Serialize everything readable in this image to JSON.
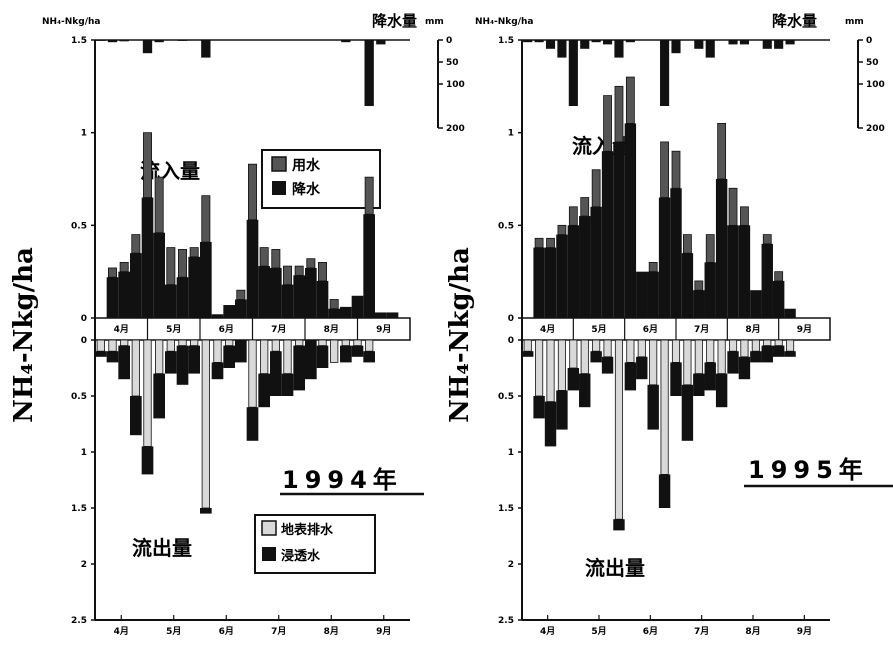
{
  "figure": {
    "y_axis_label": "NH₄-Nkg/ha",
    "rain_unit_left": "NH₄-Nkg/ha",
    "rain_label": "降水量",
    "rain_unit_right": "mm"
  },
  "colors": {
    "rain_fill": "#111111",
    "inflow_irrigation": "#555555",
    "inflow_rain": "#111111",
    "outflow_surface": "#d9d9d9",
    "outflow_subsurface": "#111111",
    "axis": "#111111"
  },
  "chart_data": [
    {
      "type": "bar",
      "year_label": "1994年",
      "inflow_label": "流入量",
      "outflow_label": "流出量",
      "legend_inflow": [
        "用水",
        "降水"
      ],
      "legend_outflow": [
        "地表排水",
        "浸透水"
      ],
      "months_top": [
        "4月",
        "5月",
        "6月",
        "7月",
        "8月",
        "9月"
      ],
      "months_bottom": [
        "4月",
        "5月",
        "6月",
        "7月",
        "8月",
        "9月"
      ],
      "inflow_yticks": [
        "1.5",
        "1",
        "0.5",
        "0"
      ],
      "outflow_yticks": [
        "0",
        "0.5",
        "1",
        "1.5",
        "2",
        "2.5"
      ],
      "rain_yticks": [
        "0",
        "50",
        "100",
        "200"
      ],
      "inflow_ylim": [
        0,
        1.5
      ],
      "outflow_ylim": [
        0,
        2.5
      ],
      "rain_ylim": [
        0,
        200
      ],
      "x_range": [
        0,
        27
      ],
      "month_starts": [
        0,
        4.5,
        9,
        13.5,
        18,
        22.5
      ],
      "rain": [
        2,
        5,
        3,
        0,
        30,
        5,
        0,
        2,
        0,
        40,
        0,
        0,
        0,
        0,
        0,
        0,
        0,
        0,
        0,
        0,
        0,
        5,
        0,
        150,
        10,
        0,
        0
      ],
      "inflow": {
        "irrigation": [
          0,
          0.05,
          0.05,
          0.1,
          0.35,
          0.3,
          0.2,
          0.15,
          0.05,
          0.25,
          0,
          0,
          0.05,
          0.3,
          0.1,
          0.1,
          0.1,
          0.05,
          0.05,
          0.1,
          0.05,
          0,
          0,
          0.2,
          0,
          0,
          0
        ],
        "rain": [
          0,
          0.22,
          0.25,
          0.35,
          0.65,
          0.46,
          0.18,
          0.22,
          0.33,
          0.41,
          0.02,
          0.07,
          0.1,
          0.53,
          0.28,
          0.27,
          0.18,
          0.23,
          0.27,
          0.2,
          0.05,
          0.06,
          0.12,
          0.56,
          0.03,
          0.03,
          0
        ]
      },
      "outflow": {
        "surface": [
          0.1,
          0.1,
          0.05,
          0.5,
          0.95,
          0.3,
          0.1,
          0.05,
          0.05,
          1.5,
          0.2,
          0.05,
          0,
          0.6,
          0.3,
          0.1,
          0.3,
          0.05,
          0,
          0.05,
          0.2,
          0.05,
          0.05,
          0.1,
          0,
          0,
          0
        ],
        "subsurface": [
          0.05,
          0.1,
          0.3,
          0.35,
          0.25,
          0.4,
          0.2,
          0.35,
          0.25,
          0.05,
          0.15,
          0.2,
          0.2,
          0.3,
          0.3,
          0.4,
          0.2,
          0.4,
          0.35,
          0.2,
          0,
          0.15,
          0.1,
          0.1,
          0,
          0,
          0
        ]
      }
    },
    {
      "type": "bar",
      "year_label": "1995年",
      "inflow_label": "流入量",
      "outflow_label": "流出量",
      "legend_inflow": [],
      "legend_outflow": [],
      "months_top": [
        "4月",
        "5月",
        "6月",
        "7月",
        "8月",
        "9月"
      ],
      "months_bottom": [
        "4月",
        "5月",
        "6月",
        "7月",
        "8月",
        "9月"
      ],
      "inflow_yticks": [
        "1.5",
        "1",
        "0.5",
        "0"
      ],
      "outflow_yticks": [
        "0",
        "0.5",
        "1",
        "1.5",
        "2",
        "2.5"
      ],
      "rain_yticks": [
        "0",
        "50",
        "100",
        "200"
      ],
      "inflow_ylim": [
        0,
        1.5
      ],
      "outflow_ylim": [
        0,
        2.5
      ],
      "rain_ylim": [
        0,
        200
      ],
      "x_range": [
        0,
        27
      ],
      "month_starts": [
        0,
        4.5,
        9,
        13.5,
        18,
        22.5
      ],
      "rain": [
        5,
        5,
        20,
        40,
        150,
        20,
        5,
        10,
        40,
        5,
        0,
        0,
        150,
        30,
        0,
        20,
        40,
        0,
        10,
        10,
        0,
        20,
        20,
        10,
        0,
        0,
        0
      ],
      "inflow": {
        "irrigation": [
          0,
          0.05,
          0.05,
          0.05,
          0.1,
          0.1,
          0.2,
          0.3,
          0.3,
          0.25,
          0,
          0.05,
          0.3,
          0.2,
          0.1,
          0.05,
          0.15,
          0.3,
          0.2,
          0.1,
          0,
          0.05,
          0.05,
          0,
          0,
          0,
          0
        ],
        "rain": [
          0,
          0.38,
          0.38,
          0.45,
          0.5,
          0.55,
          0.6,
          0.9,
          0.95,
          1.05,
          0.25,
          0.25,
          0.65,
          0.7,
          0.35,
          0.15,
          0.3,
          0.75,
          0.5,
          0.5,
          0.15,
          0.4,
          0.2,
          0.05,
          0,
          0,
          0
        ]
      },
      "outflow": {
        "surface": [
          0.1,
          0.5,
          0.55,
          0.45,
          0.25,
          0.3,
          0.1,
          0.15,
          1.6,
          0.2,
          0.15,
          0.4,
          1.2,
          0.2,
          0.4,
          0.3,
          0.2,
          0.3,
          0.1,
          0.15,
          0.1,
          0.05,
          0.05,
          0.1,
          0,
          0,
          0
        ],
        "subsurface": [
          0.05,
          0.2,
          0.4,
          0.35,
          0.2,
          0.3,
          0.1,
          0.15,
          0.1,
          0.25,
          0.2,
          0.4,
          0.3,
          0.3,
          0.5,
          0.2,
          0.25,
          0.3,
          0.2,
          0.2,
          0.1,
          0.15,
          0.1,
          0.05,
          0,
          0,
          0
        ]
      }
    }
  ]
}
